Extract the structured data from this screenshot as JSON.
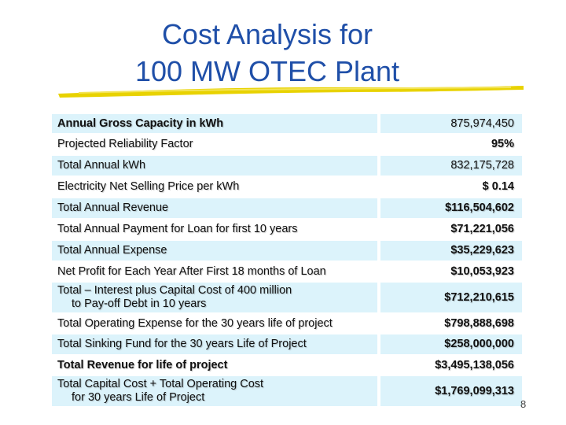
{
  "title_line1": "Cost Analysis for",
  "title_line2": "100 MW OTEC Plant",
  "rows": [
    {
      "label": "Annual Gross Capacity in kWh",
      "value": "875,974,450"
    },
    {
      "label": "Projected Reliability Factor",
      "value": "95%"
    },
    {
      "label": "Total  Annual kWh",
      "value": "832,175,728"
    },
    {
      "label": "Electricity Net Selling Price per kWh",
      "value": "$ 0.14"
    },
    {
      "label": "Total Annual Revenue",
      "value": "$116,504,602"
    },
    {
      "label": "Total Annual Payment for Loan for first 10 years",
      "value": "$71,221,056"
    },
    {
      "label": "Total Annual Expense",
      "value": "$35,229,623"
    },
    {
      "label": "Net Profit for Each Year After First 18 months of Loan",
      "value": "$10,053,923"
    },
    {
      "label_line1": "Total – Interest plus Capital Cost of 400 million",
      "label_line2": "to Pay-off Debt in 10 years",
      "value": "$712,210,615"
    },
    {
      "label": "Total Operating Expense for the 30 years life of project",
      "value": "$798,888,698"
    },
    {
      "label": "Total Sinking Fund for the 30 years Life of Project",
      "value": "$258,000,000"
    },
    {
      "label": "Total Revenue for life of project",
      "value": "$3,495,138,056"
    },
    {
      "label_line1": "Total Capital Cost + Total Operating Cost",
      "label_line2": "for 30 years Life of Project",
      "value": "$1,769,099,313"
    }
  ],
  "page_number": "8"
}
